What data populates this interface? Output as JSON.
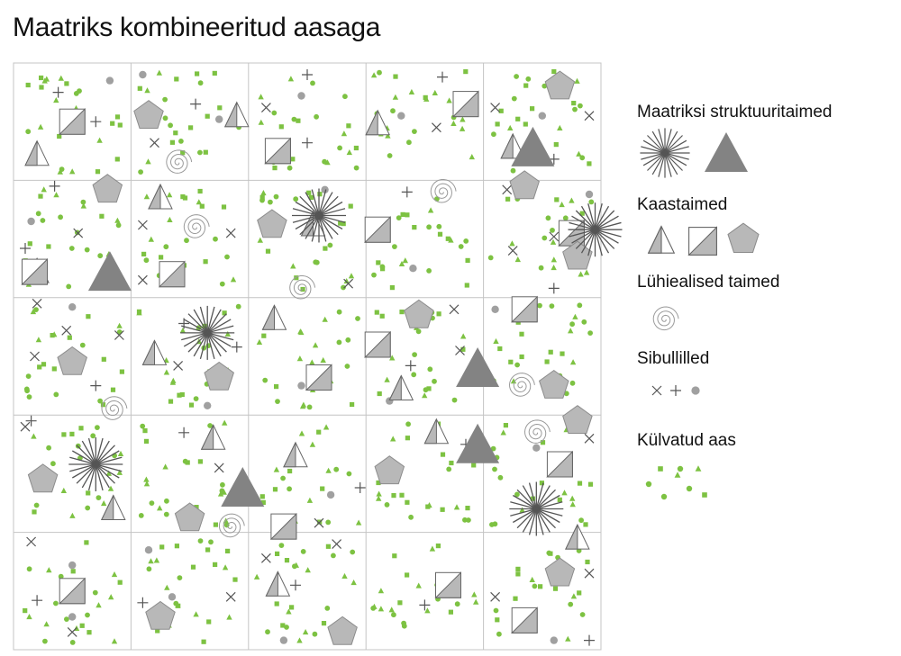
{
  "title": "Maatriks kombineeritud aasaga",
  "legend": [
    {
      "label": "Maatriksi struktuuritaimed",
      "symbols": [
        "starburst-icon",
        "triangle-icon"
      ]
    },
    {
      "label": "Kaastaimed",
      "symbols": [
        "half-triangle-icon",
        "half-square-icon",
        "pentagon-icon"
      ]
    },
    {
      "label": "Lühiealised taimed",
      "symbols": [
        "spiral-icon"
      ]
    },
    {
      "label": "Sibullilled",
      "symbols": [
        "cross-icon",
        "plus-icon",
        "dot-icon"
      ]
    },
    {
      "label": "Külvatud aas",
      "symbols": [
        "seed-mix-icon"
      ]
    }
  ],
  "grid": {
    "rows": 5,
    "cols": 5
  },
  "colors": {
    "meadow_green": "#7dc242",
    "structure_dark": "#838383",
    "companion_light": "#b8b8b8",
    "line_grey": "#555555",
    "grid_line": "#c4c4c4"
  },
  "plants": {
    "starburst": [
      [
        2,
        1,
        0.6,
        0.3
      ],
      [
        4,
        1,
        0.95,
        0.42
      ],
      [
        1,
        2,
        0.65,
        0.3
      ],
      [
        4,
        3,
        0.45,
        0.8
      ],
      [
        0,
        3,
        0.7,
        0.42
      ]
    ],
    "triangle": [
      [
        4,
        0,
        0.42,
        0.72
      ],
      [
        0,
        1,
        0.82,
        0.78
      ],
      [
        1,
        3,
        0.95,
        0.62
      ],
      [
        3,
        2,
        0.95,
        0.6
      ],
      [
        3,
        3,
        0.95,
        0.25
      ]
    ],
    "half_square": [
      [
        0,
        0,
        0.5,
        0.5
      ],
      [
        3,
        0,
        0.85,
        0.35
      ],
      [
        1,
        1,
        0.35,
        0.8
      ],
      [
        0,
        1,
        0.18,
        0.78
      ],
      [
        2,
        0,
        0.25,
        0.75
      ],
      [
        2,
        2,
        0.6,
        0.68
      ],
      [
        2,
        3,
        0.3,
        0.95
      ],
      [
        3,
        1,
        0.1,
        0.42
      ],
      [
        3,
        2,
        0.1,
        0.4
      ],
      [
        4,
        1,
        0.75,
        0.45
      ],
      [
        4,
        2,
        0.35,
        0.1
      ],
      [
        4,
        3,
        0.65,
        0.42
      ],
      [
        0,
        4,
        0.5,
        0.5
      ],
      [
        3,
        4,
        0.7,
        0.45
      ],
      [
        4,
        4,
        0.35,
        0.75
      ]
    ],
    "half_tri": [
      [
        0,
        0,
        0.2,
        0.78
      ],
      [
        1,
        0,
        0.9,
        0.45
      ],
      [
        3,
        0,
        0.1,
        0.52
      ],
      [
        4,
        0,
        0.25,
        0.72
      ],
      [
        1,
        1,
        0.25,
        0.15
      ],
      [
        0,
        1,
        0.2,
        0.78
      ],
      [
        2,
        1,
        0.55,
        0.38
      ],
      [
        1,
        2,
        0.2,
        0.48
      ],
      [
        2,
        2,
        0.22,
        0.18
      ],
      [
        3,
        2,
        0.3,
        0.78
      ],
      [
        1,
        3,
        0.7,
        0.2
      ],
      [
        3,
        3,
        0.6,
        0.15
      ],
      [
        2,
        3,
        0.4,
        0.35
      ],
      [
        0,
        3,
        0.85,
        0.8
      ],
      [
        2,
        4,
        0.25,
        0.45
      ],
      [
        4,
        4,
        0.8,
        0.05
      ]
    ],
    "pentagon": [
      [
        1,
        0,
        0.15,
        0.45
      ],
      [
        4,
        0,
        0.65,
        0.2
      ],
      [
        0,
        1,
        0.8,
        0.08
      ],
      [
        2,
        1,
        0.2,
        0.38
      ],
      [
        4,
        1,
        0.35,
        0.05
      ],
      [
        4,
        1,
        0.8,
        0.65
      ],
      [
        0,
        2,
        0.5,
        0.55
      ],
      [
        1,
        2,
        0.75,
        0.68
      ],
      [
        3,
        2,
        0.45,
        0.15
      ],
      [
        4,
        2,
        0.6,
        0.75
      ],
      [
        0,
        3,
        0.25,
        0.55
      ],
      [
        1,
        3,
        0.5,
        0.88
      ],
      [
        3,
        3,
        0.2,
        0.48
      ],
      [
        4,
        3,
        0.8,
        0.05
      ],
      [
        1,
        4,
        0.25,
        0.72
      ],
      [
        2,
        4,
        0.8,
        0.85
      ],
      [
        4,
        4,
        0.65,
        0.35
      ]
    ],
    "spiral": [
      [
        1,
        0,
        0.4,
        0.85
      ],
      [
        1,
        1,
        0.55,
        0.4
      ],
      [
        3,
        1,
        0.65,
        0.1
      ],
      [
        2,
        1,
        0.45,
        0.92
      ],
      [
        0,
        2,
        0.85,
        0.95
      ],
      [
        4,
        2,
        0.32,
        0.75
      ],
      [
        1,
        3,
        0.85,
        0.95
      ],
      [
        4,
        3,
        0.45,
        0.15
      ]
    ],
    "cross": [
      [
        2,
        0,
        0.15,
        0.38
      ],
      [
        3,
        0,
        0.6,
        0.55
      ],
      [
        4,
        0,
        0.1,
        0.38
      ],
      [
        4,
        0,
        0.9,
        0.45
      ],
      [
        1,
        0,
        0.2,
        0.68
      ],
      [
        0,
        1,
        0.55,
        0.45
      ],
      [
        1,
        1,
        0.1,
        0.38
      ],
      [
        1,
        1,
        0.85,
        0.45
      ],
      [
        1,
        1,
        0.1,
        0.85
      ],
      [
        2,
        1,
        0.85,
        0.88
      ],
      [
        4,
        1,
        0.2,
        0.08
      ],
      [
        4,
        1,
        0.6,
        0.48
      ],
      [
        4,
        1,
        0.25,
        0.6
      ],
      [
        0,
        2,
        0.2,
        0.05
      ],
      [
        0,
        2,
        0.45,
        0.28
      ],
      [
        0,
        2,
        0.9,
        0.32
      ],
      [
        0,
        2,
        0.18,
        0.5
      ],
      [
        1,
        2,
        0.4,
        0.58
      ],
      [
        3,
        2,
        0.75,
        0.1
      ],
      [
        3,
        2,
        0.8,
        0.45
      ],
      [
        0,
        3,
        0.1,
        0.1
      ],
      [
        4,
        3,
        0.9,
        0.2
      ],
      [
        1,
        3,
        0.75,
        0.45
      ],
      [
        2,
        3,
        0.6,
        0.92
      ],
      [
        0,
        4,
        0.15,
        0.08
      ],
      [
        0,
        4,
        0.5,
        0.85
      ],
      [
        2,
        4,
        0.15,
        0.22
      ],
      [
        2,
        4,
        0.75,
        0.1
      ],
      [
        1,
        4,
        0.85,
        0.55
      ],
      [
        4,
        4,
        0.9,
        0.35
      ],
      [
        4,
        4,
        0.1,
        0.55
      ]
    ],
    "plus": [
      [
        0,
        0,
        0.38,
        0.25
      ],
      [
        0,
        0,
        0.7,
        0.5
      ],
      [
        1,
        0,
        0.55,
        0.35
      ],
      [
        2,
        0,
        0.5,
        0.1
      ],
      [
        2,
        0,
        0.5,
        0.68
      ],
      [
        3,
        0,
        0.65,
        0.12
      ],
      [
        4,
        0,
        0.6,
        0.82
      ],
      [
        0,
        1,
        0.35,
        0.05
      ],
      [
        0,
        1,
        0.1,
        0.58
      ],
      [
        3,
        1,
        0.35,
        0.1
      ],
      [
        4,
        1,
        0.6,
        0.92
      ],
      [
        1,
        2,
        0.45,
        0.22
      ],
      [
        1,
        2,
        0.9,
        0.42
      ],
      [
        0,
        2,
        0.7,
        0.75
      ],
      [
        3,
        2,
        0.38,
        0.58
      ],
      [
        0,
        3,
        0.15,
        0.05
      ],
      [
        1,
        3,
        0.45,
        0.15
      ],
      [
        3,
        3,
        0.85,
        0.25
      ],
      [
        2,
        3,
        0.95,
        0.62
      ],
      [
        0,
        4,
        0.2,
        0.58
      ],
      [
        1,
        4,
        0.1,
        0.6
      ],
      [
        2,
        4,
        0.4,
        0.45
      ],
      [
        3,
        4,
        0.5,
        0.62
      ],
      [
        4,
        4,
        0.9,
        0.92
      ]
    ],
    "grey_dot": [
      [
        0,
        0,
        0.82,
        0.15
      ],
      [
        1,
        0,
        0.1,
        0.1
      ],
      [
        1,
        0,
        0.75,
        0.48
      ],
      [
        2,
        0,
        0.45,
        0.28
      ],
      [
        3,
        0,
        0.3,
        0.45
      ],
      [
        4,
        0,
        0.5,
        0.45
      ],
      [
        0,
        1,
        0.15,
        0.35
      ],
      [
        2,
        1,
        0.65,
        0.08
      ],
      [
        3,
        1,
        0.4,
        0.75
      ],
      [
        4,
        1,
        0.9,
        0.12
      ],
      [
        0,
        2,
        0.5,
        0.08
      ],
      [
        1,
        2,
        0.65,
        0.92
      ],
      [
        2,
        2,
        0.45,
        0.75
      ],
      [
        4,
        2,
        0.1,
        0.1
      ],
      [
        3,
        2,
        0.2,
        0.88
      ],
      [
        4,
        3,
        0.45,
        0.28
      ],
      [
        2,
        3,
        0.7,
        0.68
      ],
      [
        0,
        4,
        0.5,
        0.28
      ],
      [
        0,
        4,
        0.5,
        0.72
      ],
      [
        1,
        4,
        0.15,
        0.15
      ],
      [
        1,
        4,
        0.35,
        0.55
      ],
      [
        4,
        4,
        0.6,
        0.92
      ],
      [
        2,
        4,
        0.3,
        0.92
      ]
    ]
  }
}
